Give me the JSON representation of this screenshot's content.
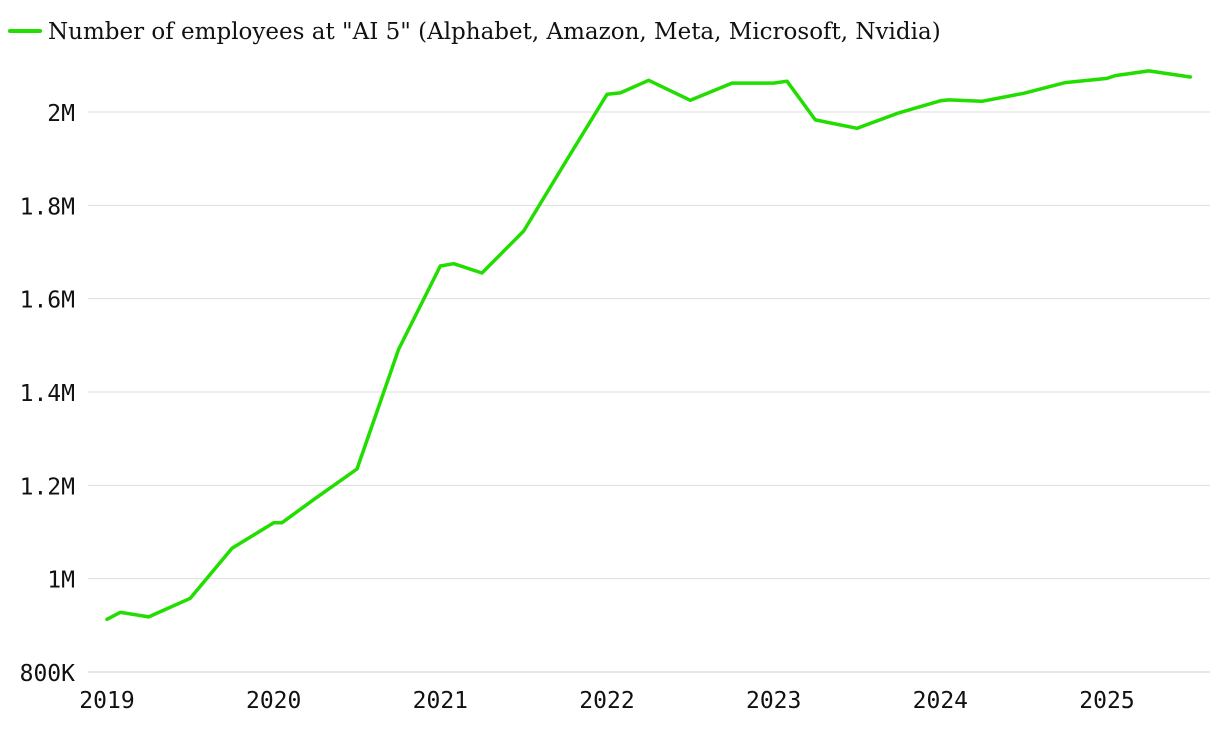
{
  "chart_data": {
    "type": "line",
    "title": "",
    "xlabel": "",
    "ylabel": "",
    "legend_position": "top-left",
    "grid": true,
    "xlim": [
      2019,
      2025.6
    ],
    "ylim": [
      800000,
      2000000
    ],
    "x_ticks": [
      2019,
      2020,
      2021,
      2022,
      2023,
      2024,
      2025
    ],
    "x_tick_labels": [
      "2019",
      "2020",
      "2021",
      "2022",
      "2023",
      "2024",
      "2025"
    ],
    "y_ticks": [
      800000,
      1000000,
      1200000,
      1400000,
      1600000,
      1800000,
      2000000
    ],
    "y_tick_labels": [
      "800K",
      "1M",
      "1.2M",
      "1.4M",
      "1.6M",
      "1.8M",
      "2M"
    ],
    "series": [
      {
        "name": "Number of employees at \"AI 5\" (Alphabet, Amazon, Meta, Microsoft, Nvidia)",
        "color": "#22dd00",
        "x": [
          2019.0,
          2019.08,
          2019.25,
          2019.5,
          2019.75,
          2020.0,
          2020.05,
          2020.25,
          2020.5,
          2020.75,
          2021.0,
          2021.08,
          2021.25,
          2021.5,
          2021.75,
          2022.0,
          2022.08,
          2022.25,
          2022.5,
          2022.75,
          2023.0,
          2023.08,
          2023.25,
          2023.5,
          2023.75,
          2024.0,
          2024.05,
          2024.25,
          2024.5,
          2024.75,
          2025.0,
          2025.05,
          2025.25,
          2025.5
        ],
        "values": [
          913000,
          928000,
          918000,
          958000,
          1065000,
          1120000,
          1120000,
          1172000,
          1235000,
          1492000,
          1670000,
          1675000,
          1655000,
          1745000,
          1892000,
          2038000,
          2041000,
          2068000,
          2025000,
          2062000,
          2062000,
          2066000,
          1983000,
          1965000,
          1998000,
          2024000,
          2026000,
          2023000,
          2040000,
          2063000,
          2072000,
          2078000,
          2088000,
          2075000
        ]
      }
    ]
  }
}
